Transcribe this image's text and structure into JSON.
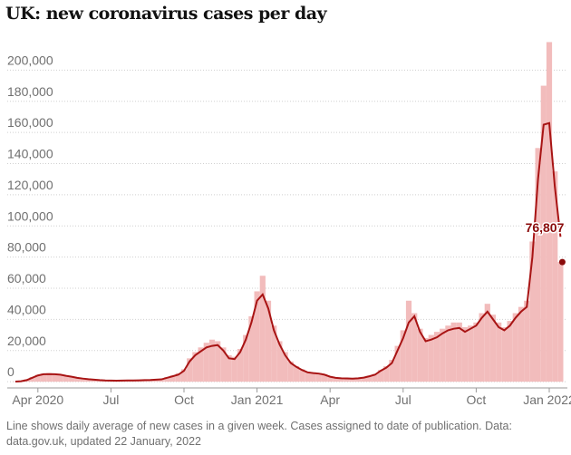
{
  "chart_data": {
    "type": "bar-line",
    "title": "UK: new coronavirus cases per day",
    "footnote": "Line shows daily average of new cases in a given week. Cases assigned to date of publication. Data: data.gov.uk, updated 22 January, 2022",
    "categories": [
      null,
      null,
      null,
      null,
      "Apr 2020",
      null,
      null,
      null,
      null,
      null,
      null,
      null,
      null,
      null,
      null,
      null,
      null,
      "Jul",
      null,
      null,
      null,
      null,
      null,
      null,
      null,
      null,
      null,
      null,
      null,
      null,
      "Oct",
      null,
      null,
      null,
      null,
      null,
      null,
      null,
      null,
      null,
      null,
      null,
      null,
      "Jan 2021",
      null,
      null,
      null,
      null,
      null,
      null,
      null,
      null,
      null,
      null,
      null,
      null,
      "Apr",
      null,
      null,
      null,
      null,
      null,
      null,
      null,
      null,
      null,
      null,
      null,
      null,
      "Jul",
      null,
      null,
      null,
      null,
      null,
      null,
      null,
      null,
      null,
      null,
      null,
      null,
      "Oct",
      null,
      null,
      null,
      null,
      null,
      null,
      null,
      null,
      null,
      null,
      null,
      null,
      "Jan 2022",
      null,
      null
    ],
    "series": [
      {
        "kind": "bar",
        "color": "#f2bcbc",
        "values": [
          0.2,
          0.5,
          1.5,
          3,
          4.5,
          5.2,
          5.5,
          5,
          4.8,
          4,
          3.4,
          2.7,
          2.2,
          1.7,
          1.4,
          1.1,
          0.9,
          0.8,
          0.7,
          0.8,
          0.9,
          0.9,
          1,
          1.1,
          1.3,
          1.5,
          1.8,
          3,
          4,
          5.5,
          8,
          15,
          19,
          22,
          25,
          27,
          26,
          22,
          17,
          16,
          21,
          30,
          42,
          58,
          68,
          52,
          36,
          26,
          19,
          13,
          10,
          8,
          6.5,
          6,
          5.6,
          4.8,
          3.4,
          2.7,
          2.4,
          2.3,
          2.1,
          2.4,
          2.9,
          3.9,
          5,
          7.5,
          10,
          14,
          23,
          33,
          52,
          44,
          34,
          28,
          30,
          32,
          34,
          36,
          38,
          38,
          35,
          36,
          38,
          44,
          50,
          43,
          38,
          35,
          39,
          44,
          48,
          52,
          90,
          150,
          190,
          218,
          135,
          76.807
        ]
      },
      {
        "kind": "line",
        "color": "#a81414",
        "values": [
          0.1,
          0.3,
          1,
          2.5,
          4,
          4.8,
          4.9,
          4.8,
          4.5,
          3.8,
          3.2,
          2.5,
          2,
          1.6,
          1.3,
          1,
          0.8,
          0.7,
          0.65,
          0.7,
          0.8,
          0.8,
          0.9,
          1,
          1.1,
          1.3,
          1.5,
          2.5,
          3.5,
          4.5,
          7,
          13,
          17,
          19.5,
          22,
          23,
          23.5,
          20,
          15,
          14.5,
          19,
          27,
          38,
          52,
          56,
          47,
          33,
          24,
          17,
          12,
          9.5,
          7.5,
          6,
          5.5,
          5.2,
          4.5,
          3.2,
          2.5,
          2.2,
          2.1,
          2,
          2.2,
          2.6,
          3.5,
          4.5,
          7,
          9,
          12,
          20,
          28,
          38,
          42,
          32,
          26,
          27,
          28.5,
          31,
          33,
          34,
          34.5,
          32,
          34,
          36,
          41,
          45,
          40,
          35,
          33,
          36,
          41,
          45,
          48,
          80,
          130,
          165,
          166,
          125,
          93
        ]
      }
    ],
    "value_scale": 1000,
    "annotation": {
      "label": "76,807",
      "value": 76807
    },
    "ylim": [
      -4000,
      220000
    ],
    "yticks": [
      0,
      {
        "value": 20000,
        "label": "20,000"
      },
      {
        "value": 40000,
        "label": "40,000"
      },
      {
        "value": 60000,
        "label": "60,000"
      },
      {
        "value": 80000,
        "label": "80,000"
      },
      {
        "value": 100000,
        "label": "100,000"
      },
      {
        "value": 120000,
        "label": "120,000"
      },
      {
        "value": 140000,
        "label": "140,000"
      },
      {
        "value": 160000,
        "label": "160,000"
      },
      {
        "value": 180000,
        "label": "180,000"
      },
      {
        "value": 200000,
        "label": "200,000"
      }
    ],
    "grid": true
  }
}
